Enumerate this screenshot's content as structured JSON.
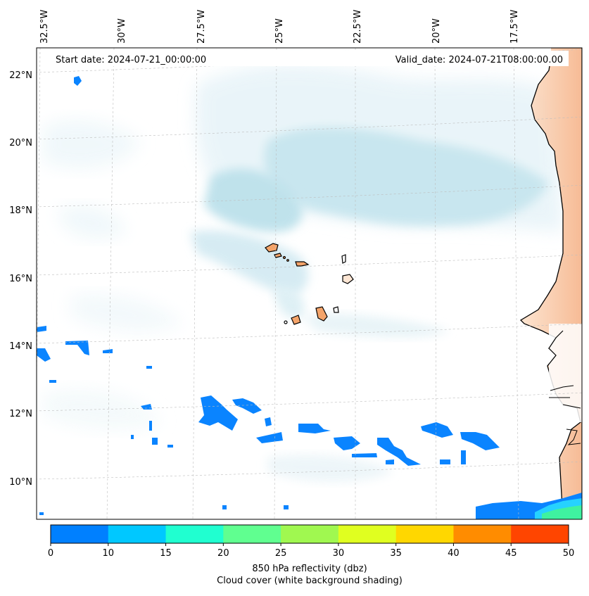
{
  "header": {
    "start_date": "Start date: 2024-07-21_00:00:00",
    "valid_date": "Valid_date: 2024-07-21T08:00:00.00"
  },
  "axes": {
    "lon_labels": [
      "32.5°W",
      "30°W",
      "27.5°W",
      "25°W",
      "22.5°W",
      "20°W",
      "17.5°W"
    ],
    "lat_labels": [
      "22°N",
      "20°N",
      "18°N",
      "16°N",
      "14°N",
      "12°N",
      "10°N"
    ],
    "gridlines": "dashed",
    "extent": {
      "lon": [
        -32.6,
        -15.6
      ],
      "lat": [
        8.9,
        22.8
      ]
    }
  },
  "colorbar": {
    "ticks": [
      "0",
      "10",
      "15",
      "20",
      "25",
      "30",
      "35",
      "40",
      "45",
      "50"
    ],
    "colors": [
      "#0080ff",
      "#00c8ff",
      "#20ffd0",
      "#60ff90",
      "#a0f850",
      "#e0ff20",
      "#ffd700",
      "#ff8c00",
      "#ff4500"
    ],
    "label_line1": "850 hPa reflectivity (dbz)",
    "label_line2": "Cloud cover (white background shading)"
  },
  "colors": {
    "cloud": "#a8d8e6",
    "land": "#f4a46a",
    "reflectivity_low": "#0a84ff",
    "reflectivity_mid": "#3ff2a0"
  }
}
